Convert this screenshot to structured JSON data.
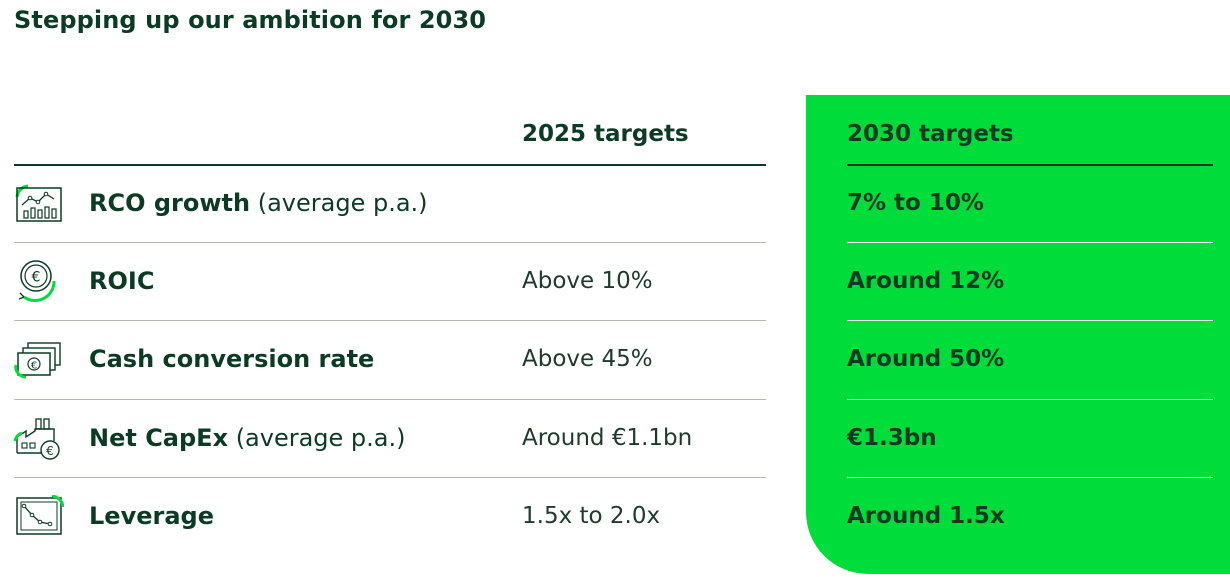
{
  "title": "Stepping up our ambition for 2030",
  "columns": {
    "targets_2025": "2025 targets",
    "targets_2030": "2030 targets"
  },
  "colors": {
    "dark_green": "#0b3b24",
    "bright_green": "#00dc3a"
  },
  "rows": [
    {
      "icon": "bar-chart-trend-icon",
      "label": "RCO growth",
      "qualifier": " (average p.a.)",
      "target_2025": "",
      "target_2030": "7% to 10%"
    },
    {
      "icon": "euro-coin-cycle-icon",
      "label": "ROIC",
      "qualifier": "",
      "target_2025": "Above 10%",
      "target_2030": "Around 12%"
    },
    {
      "icon": "banknotes-euro-icon",
      "label": "Cash conversion rate",
      "qualifier": "",
      "target_2025": "Above 45%",
      "target_2030": "Around 50%"
    },
    {
      "icon": "factory-euro-icon",
      "label": "Net CapEx",
      "qualifier": " (average p.a.)",
      "target_2025": "Around €1.1bn",
      "target_2030": "€1.3bn"
    },
    {
      "icon": "declining-line-chart-icon",
      "label": "Leverage",
      "qualifier": "",
      "target_2025": "1.5x to 2.0x",
      "target_2030": "Around 1.5x"
    }
  ]
}
